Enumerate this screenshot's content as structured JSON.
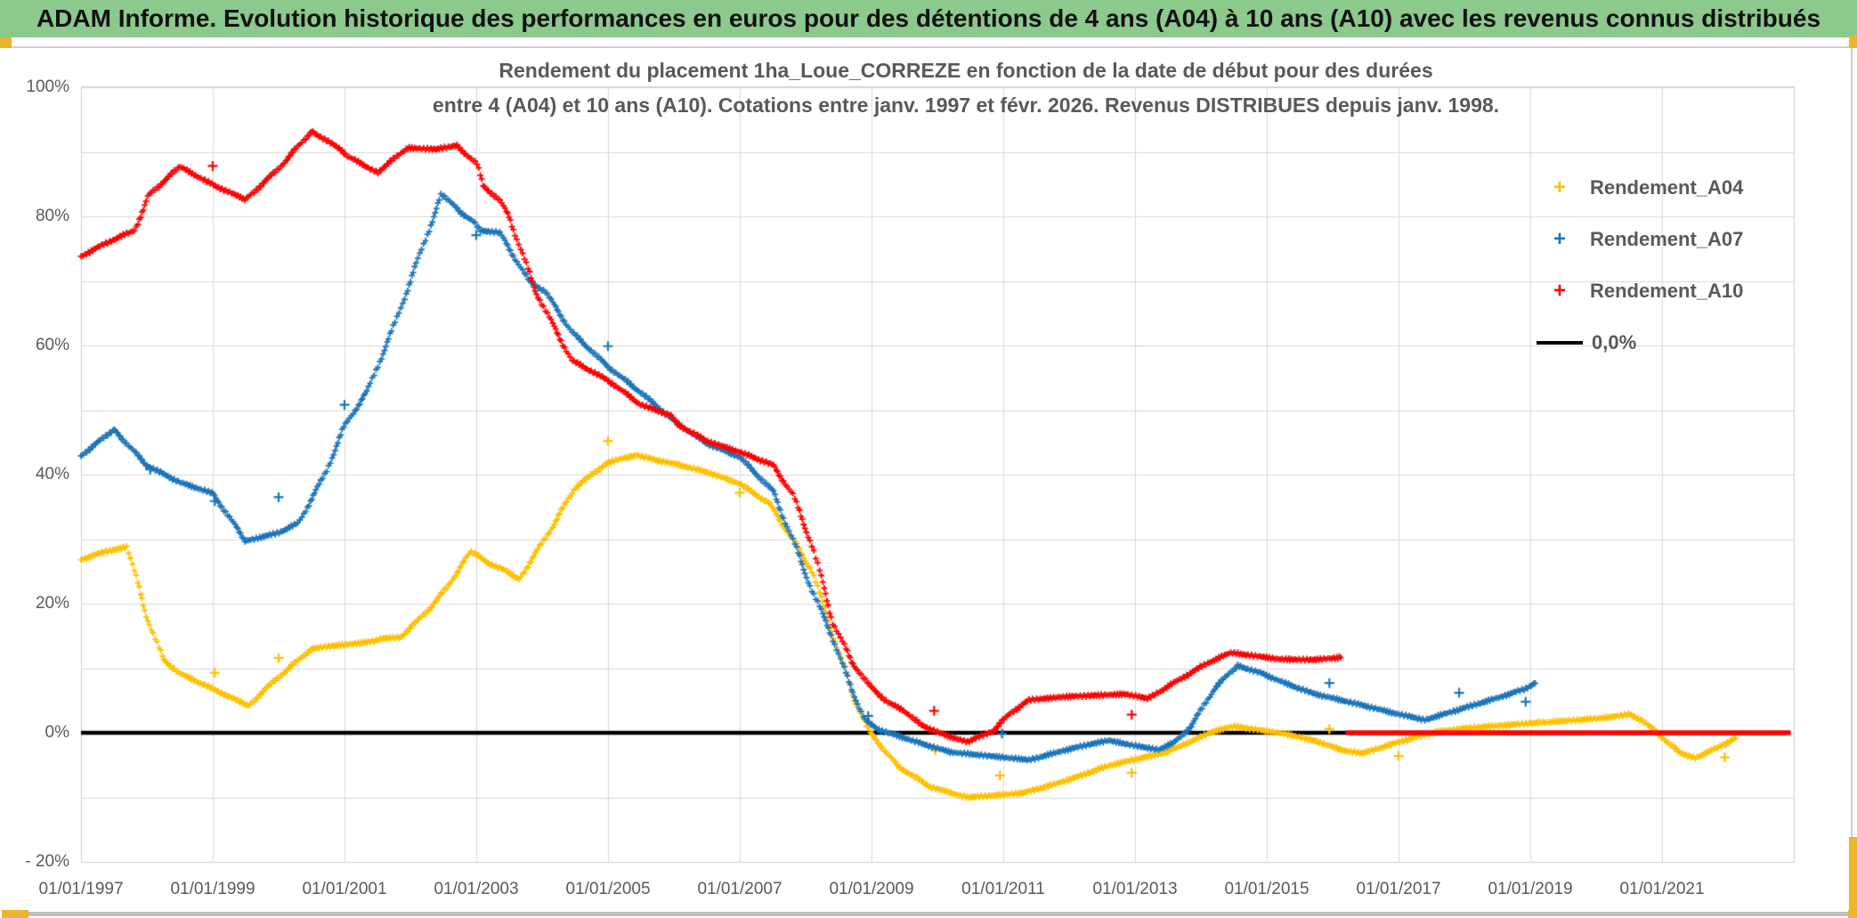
{
  "header": {
    "title": "ADAM Informe. Evolution historique des performances en euros pour des détentions de 4 ans (A04) à 10 ans (A10) avec les revenus connus distribués",
    "bg_color": "#8CC98C"
  },
  "chart": {
    "title_line1": "Rendement du placement 1ha_Loue_CORREZE en fonction de la date de début pour des durées",
    "title_line2": "entre 4 (A04) et 10 ans (A10). Cotations entre janv. 1997 et févr. 2026. Revenus DISTRIBUES depuis janv. 1998."
  },
  "legend": {
    "items": [
      {
        "label": "Rendement_A04",
        "marker": "+",
        "color": "#FFC000",
        "type": "marker"
      },
      {
        "label": "Rendement_A07",
        "marker": "+",
        "color": "#1B75BC",
        "type": "marker"
      },
      {
        "label": "Rendement_A10",
        "marker": "+",
        "color": "#FF0000",
        "type": "marker"
      },
      {
        "label": "0,0%",
        "color": "#000000",
        "type": "line"
      }
    ]
  },
  "chart_data": {
    "type": "scatter",
    "title": "Rendement du placement 1ha_Loue_CORREZE en fonction de la date de début pour des durées entre 4 (A04) et 10 ans (A10). Cotations entre janv. 1997 et févr. 2026. Revenus DISTRIBUES depuis janv. 1998.",
    "x_axis": {
      "tick_labels": [
        "01/01/1997",
        "01/01/1999",
        "01/01/2001",
        "01/01/2003",
        "01/01/2005",
        "01/01/2007",
        "01/01/2009",
        "01/01/2011",
        "01/01/2013",
        "01/01/2015",
        "01/01/2017",
        "01/01/2019",
        "01/01/2021"
      ],
      "tick_years": [
        1997,
        1999,
        2001,
        2003,
        2005,
        2007,
        2009,
        2011,
        2013,
        2015,
        2017,
        2019,
        2021
      ],
      "min_year": 1997,
      "max_year": 2023,
      "gridline_every_years": 2
    },
    "y_axis": {
      "tick_labels": [
        "100%",
        "80%",
        "60%",
        "40%",
        "20%",
        "0%",
        "- 20%"
      ],
      "tick_values": [
        100,
        80,
        60,
        40,
        20,
        0,
        -20
      ],
      "min": -20,
      "max": 100,
      "gridline_step": 10,
      "unit": "percent"
    },
    "zero_line": {
      "label": "0,0%",
      "value": 0.0,
      "color": "#000000",
      "from_year": 1997.0,
      "to_year": 2022.95
    },
    "series": [
      {
        "name": "Rendement_A04",
        "color": "#FFC000",
        "marker": "plus",
        "points": [
          [
            1997.0,
            26.8
          ],
          [
            1997.3,
            27.9
          ],
          [
            1997.7,
            28.8
          ],
          [
            1998.0,
            18.0
          ],
          [
            1998.25,
            11.3
          ],
          [
            1998.5,
            9.2
          ],
          [
            1999.0,
            6.8
          ],
          [
            1999.35,
            5.1
          ],
          [
            1999.55,
            4.2
          ],
          [
            1999.8,
            6.8
          ],
          [
            2000.0,
            8.6
          ],
          [
            2000.2,
            10.4
          ],
          [
            2000.5,
            13.0
          ],
          [
            2000.75,
            13.4
          ],
          [
            2001.15,
            13.8
          ],
          [
            2001.45,
            14.2
          ],
          [
            2001.55,
            14.6
          ],
          [
            2001.85,
            14.8
          ],
          [
            2002.05,
            16.8
          ],
          [
            2002.3,
            19.3
          ],
          [
            2002.55,
            22.5
          ],
          [
            2002.75,
            25.5
          ],
          [
            2002.92,
            28.1
          ],
          [
            2003.2,
            26.2
          ],
          [
            2003.45,
            25.1
          ],
          [
            2003.65,
            23.8
          ],
          [
            2004.1,
            31.0
          ],
          [
            2004.5,
            38.0
          ],
          [
            2004.97,
            41.7
          ],
          [
            2005.2,
            42.5
          ],
          [
            2005.45,
            43.0
          ],
          [
            2005.75,
            42.2
          ],
          [
            2006.0,
            41.7
          ],
          [
            2006.5,
            40.4
          ],
          [
            2007.0,
            38.6
          ],
          [
            2007.45,
            35.5
          ],
          [
            2007.8,
            30.0
          ],
          [
            2008.1,
            25.0
          ],
          [
            2008.45,
            14.0
          ],
          [
            2008.75,
            5.0
          ],
          [
            2008.98,
            0.0
          ],
          [
            2009.4,
            -5.2
          ],
          [
            2009.9,
            -8.4
          ],
          [
            2010.45,
            -10.0
          ],
          [
            2011.0,
            -9.6
          ],
          [
            2011.3,
            -9.3
          ],
          [
            2011.7,
            -8.2
          ],
          [
            2012.1,
            -6.9
          ],
          [
            2012.6,
            -5.1
          ],
          [
            2013.0,
            -4.1
          ],
          [
            2013.45,
            -3.1
          ],
          [
            2013.95,
            -0.9
          ],
          [
            2014.15,
            0.1
          ],
          [
            2014.5,
            1.0
          ],
          [
            2014.85,
            0.5
          ],
          [
            2015.3,
            -0.2
          ],
          [
            2015.75,
            -1.3
          ],
          [
            2016.15,
            -2.7
          ],
          [
            2016.45,
            -3.2
          ],
          [
            2016.85,
            -1.9
          ],
          [
            2017.25,
            -0.7
          ],
          [
            2017.6,
            0.2
          ],
          [
            2018.0,
            0.7
          ],
          [
            2018.9,
            1.4
          ],
          [
            2019.75,
            2.0
          ],
          [
            2020.2,
            2.4
          ],
          [
            2020.5,
            2.9
          ],
          [
            2020.7,
            1.9
          ],
          [
            2020.95,
            -0.2
          ],
          [
            2021.25,
            -3.0
          ],
          [
            2021.5,
            -3.9
          ],
          [
            2021.8,
            -2.5
          ],
          [
            2022.05,
            -1.2
          ],
          [
            2022.15,
            -0.7
          ]
        ],
        "outliers": [
          [
            1999.03,
            9.3
          ],
          [
            2000.0,
            11.6
          ],
          [
            2005.0,
            45.2
          ],
          [
            2007.0,
            37.2
          ],
          [
            2008.95,
            1.0
          ],
          [
            2009.97,
            -2.7
          ],
          [
            2010.95,
            -6.6
          ],
          [
            2012.95,
            -6.2
          ],
          [
            2015.95,
            0.6
          ],
          [
            2017.0,
            -3.6
          ],
          [
            2021.95,
            -3.8
          ]
        ]
      },
      {
        "name": "Rendement_A07",
        "color": "#1B75BC",
        "marker": "plus",
        "points": [
          [
            1997.0,
            42.9
          ],
          [
            1997.5,
            47.0
          ],
          [
            1998.0,
            41.4
          ],
          [
            1998.5,
            38.8
          ],
          [
            1999.0,
            37.1
          ],
          [
            1999.5,
            29.7
          ],
          [
            2000.0,
            31.0
          ],
          [
            2000.3,
            32.5
          ],
          [
            2000.7,
            40.0
          ],
          [
            2001.0,
            47.5
          ],
          [
            2001.35,
            53.0
          ],
          [
            2001.75,
            63.0
          ],
          [
            2002.0,
            70.0
          ],
          [
            2002.3,
            78.5
          ],
          [
            2002.48,
            83.5
          ],
          [
            2002.75,
            80.7
          ],
          [
            2002.95,
            79.3
          ],
          [
            2003.05,
            77.8
          ],
          [
            2003.35,
            77.5
          ],
          [
            2003.8,
            70.0
          ],
          [
            2004.05,
            68.3
          ],
          [
            2004.45,
            62.1
          ],
          [
            2005.0,
            56.7
          ],
          [
            2005.5,
            52.7
          ],
          [
            2006.0,
            48.3
          ],
          [
            2006.5,
            44.8
          ],
          [
            2007.0,
            42.7
          ],
          [
            2007.5,
            37.5
          ],
          [
            2007.8,
            30.0
          ],
          [
            2008.1,
            22.0
          ],
          [
            2008.4,
            15.0
          ],
          [
            2008.65,
            8.0
          ],
          [
            2008.9,
            2.0
          ],
          [
            2009.1,
            0.5
          ],
          [
            2009.35,
            -0.3
          ],
          [
            2009.8,
            -1.8
          ],
          [
            2010.2,
            -3.0
          ],
          [
            2010.8,
            -3.6
          ],
          [
            2011.4,
            -4.2
          ],
          [
            2011.9,
            -2.8
          ],
          [
            2012.3,
            -1.8
          ],
          [
            2012.6,
            -1.2
          ],
          [
            2013.0,
            -2.0
          ],
          [
            2013.35,
            -2.6
          ],
          [
            2013.6,
            -1.5
          ],
          [
            2013.85,
            1.0
          ],
          [
            2014.2,
            6.8
          ],
          [
            2014.55,
            10.4
          ],
          [
            2014.9,
            9.3
          ],
          [
            2015.3,
            7.6
          ],
          [
            2015.7,
            6.1
          ],
          [
            2016.4,
            4.4
          ],
          [
            2016.95,
            3.0
          ],
          [
            2017.4,
            2.0
          ],
          [
            2017.95,
            3.7
          ],
          [
            2018.5,
            5.4
          ],
          [
            2018.92,
            6.8
          ],
          [
            2019.08,
            7.8
          ]
        ],
        "outliers": [
          [
            1998.05,
            40.8
          ],
          [
            1999.03,
            35.9
          ],
          [
            2000.0,
            36.5
          ],
          [
            2001.0,
            50.8
          ],
          [
            2003.0,
            77.1
          ],
          [
            2005.0,
            59.9
          ],
          [
            2008.95,
            2.6
          ],
          [
            2010.98,
            -0.1
          ],
          [
            2015.95,
            7.7
          ],
          [
            2017.92,
            6.2
          ],
          [
            2018.93,
            4.8
          ]
        ]
      },
      {
        "name": "Rendement_A10",
        "color": "#FF0000",
        "marker": "plus",
        "points": [
          [
            1997.0,
            73.8
          ],
          [
            1997.35,
            75.7
          ],
          [
            1997.8,
            77.8
          ],
          [
            1997.97,
            81.5
          ],
          [
            1998.03,
            83.3
          ],
          [
            1998.5,
            87.7
          ],
          [
            1999.0,
            84.9
          ],
          [
            1999.5,
            82.6
          ],
          [
            2000.0,
            87.4
          ],
          [
            2000.5,
            93.2
          ],
          [
            2000.97,
            90.2
          ],
          [
            2001.05,
            89.3
          ],
          [
            2001.5,
            86.8
          ],
          [
            2001.95,
            90.6
          ],
          [
            2002.4,
            90.4
          ],
          [
            2002.7,
            91.0
          ],
          [
            2003.0,
            88.2
          ],
          [
            2003.1,
            84.8
          ],
          [
            2003.35,
            82.5
          ],
          [
            2003.5,
            80.0
          ],
          [
            2003.9,
            68.4
          ],
          [
            2004.2,
            62.5
          ],
          [
            2004.45,
            57.7
          ],
          [
            2005.0,
            54.6
          ],
          [
            2005.5,
            50.8
          ],
          [
            2005.95,
            49.2
          ],
          [
            2006.05,
            47.8
          ],
          [
            2006.5,
            45.2
          ],
          [
            2007.0,
            43.5
          ],
          [
            2007.5,
            41.5
          ],
          [
            2007.8,
            37.0
          ],
          [
            2008.1,
            29.0
          ],
          [
            2008.42,
            17.0
          ],
          [
            2008.7,
            11.0
          ],
          [
            2008.96,
            7.4
          ],
          [
            2009.25,
            4.7
          ],
          [
            2009.5,
            3.4
          ],
          [
            2009.75,
            1.2
          ],
          [
            2010.1,
            -0.3
          ],
          [
            2010.45,
            -1.4
          ],
          [
            2010.85,
            0.3
          ],
          [
            2011.1,
            3.0
          ],
          [
            2011.4,
            5.1
          ],
          [
            2011.95,
            5.6
          ],
          [
            2012.4,
            5.8
          ],
          [
            2012.85,
            6.0
          ],
          [
            2013.2,
            5.3
          ],
          [
            2013.6,
            7.8
          ],
          [
            2014.1,
            10.8
          ],
          [
            2014.45,
            12.4
          ],
          [
            2014.75,
            12.0
          ],
          [
            2015.2,
            11.4
          ],
          [
            2015.7,
            11.3
          ],
          [
            2016.05,
            11.6
          ],
          [
            2016.14,
            11.8
          ]
        ],
        "zero_tail": {
          "from_year": 2016.2,
          "to_year": 2022.95,
          "value": 0.0
        },
        "outliers": [
          [
            1999.0,
            87.8
          ],
          [
            2009.95,
            3.4
          ],
          [
            2012.95,
            2.8
          ]
        ]
      }
    ]
  }
}
